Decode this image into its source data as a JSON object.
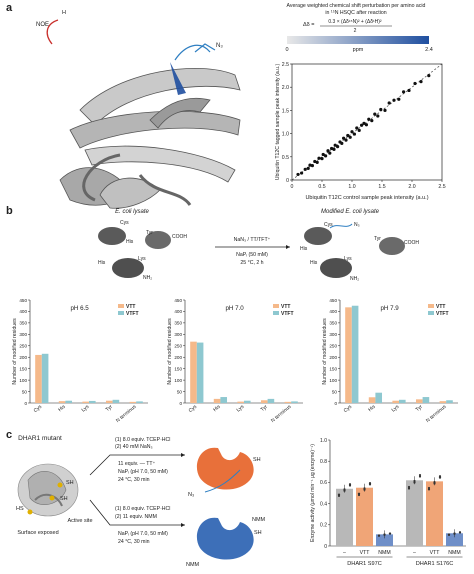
{
  "panels": {
    "a": "a",
    "b": "b",
    "c": "c"
  },
  "panel_a": {
    "noe_label": "NOE",
    "atom_h": "H",
    "atom_n3": "N₃",
    "legend": {
      "title_line1": "Average weighted chemical shift perturbation per amino acid",
      "title_line2": "in ¹⁵N HSQC after reaction",
      "formula_lhs": "Δδ =",
      "formula_num": "0.3 × (Δδ¹⁵N)² + (Δδ¹H)²",
      "formula_den": "2",
      "colorbar_min": "0",
      "colorbar_max": "2.4",
      "colorbar_unit": "ppm",
      "colorbar_from": "#e8e8e8",
      "colorbar_to": "#1f4fa0"
    }
  },
  "panel_b": {
    "lysate_left": "E. coli lysate",
    "lysate_right": "Modified E. coli lysate",
    "residues": {
      "cys": "Cys",
      "his": "His",
      "lys": "Lys",
      "tyr": "Tyr",
      "nh2": "NH₂",
      "cooh": "COOH",
      "n3": "N₃"
    },
    "reagent_line": "NaN₃ / TT/TFT⁺",
    "cond_line1": "NaPᵢ (50 mM)",
    "cond_line2": "25 °C, 2 h"
  },
  "panel_c": {
    "title": "DHAR1 mutant",
    "surface_label": "Surface exposed",
    "active_label": "Active site",
    "hs_label": "HS",
    "sh1_label": "SH",
    "sh2_label": "SH",
    "top_steps": [
      "(1) 8.0 equiv. TCEP·HCl",
      "(2) 40 mM NaN₃",
      "11 equiv. — TT⁺",
      "NaPᵢ (pH 7.0, 50 mM)",
      "24 °C, 30 min"
    ],
    "bottom_steps": [
      "(1) 8.0 equiv. TCEP·HCl",
      "(2) 11 equiv. NMM",
      "NaPᵢ (pH 7.0, 50 mM)",
      "24 °C, 30 min"
    ],
    "orange_sh": "SH",
    "blue_sh": "SH",
    "blue_nmm1": "NMM",
    "blue_nmm2": "NMM",
    "orange_n3": "N₃",
    "protein_orange": "#e8703a",
    "protein_blue": "#3d6fb8"
  },
  "chart_data": [
    {
      "type": "scatter",
      "xlabel": "Ubiquitin T12C control sample peak intensity (a.u.)",
      "ylabel": "Ubiquitin T12C tagged sample peak intensity (a.u.)",
      "xlim": [
        0,
        2.5
      ],
      "ylim": [
        0,
        2.5
      ],
      "xticks": [
        "0",
        "0.5",
        "1.0",
        "1.5",
        "2.0",
        "2.5"
      ],
      "yticks": [
        "0",
        "0.5",
        "1.0",
        "1.5",
        "2.0",
        "2.5"
      ],
      "grid": false,
      "points": [
        [
          0.1,
          0.12
        ],
        [
          0.16,
          0.15
        ],
        [
          0.22,
          0.23
        ],
        [
          0.27,
          0.25
        ],
        [
          0.3,
          0.32
        ],
        [
          0.34,
          0.31
        ],
        [
          0.38,
          0.4
        ],
        [
          0.42,
          0.38
        ],
        [
          0.45,
          0.47
        ],
        [
          0.5,
          0.46
        ],
        [
          0.52,
          0.55
        ],
        [
          0.56,
          0.52
        ],
        [
          0.6,
          0.63
        ],
        [
          0.63,
          0.58
        ],
        [
          0.66,
          0.68
        ],
        [
          0.7,
          0.66
        ],
        [
          0.72,
          0.75
        ],
        [
          0.76,
          0.72
        ],
        [
          0.8,
          0.82
        ],
        [
          0.83,
          0.79
        ],
        [
          0.86,
          0.9
        ],
        [
          0.9,
          0.86
        ],
        [
          0.93,
          0.96
        ],
        [
          0.97,
          0.92
        ],
        [
          1.0,
          1.04
        ],
        [
          1.04,
          0.99
        ],
        [
          1.08,
          1.12
        ],
        [
          1.12,
          1.07
        ],
        [
          1.16,
          1.18
        ],
        [
          1.2,
          1.22
        ],
        [
          1.24,
          1.19
        ],
        [
          1.28,
          1.31
        ],
        [
          1.33,
          1.28
        ],
        [
          1.38,
          1.42
        ],
        [
          1.43,
          1.38
        ],
        [
          1.48,
          1.52
        ],
        [
          1.55,
          1.5
        ],
        [
          1.62,
          1.66
        ],
        [
          1.7,
          1.72
        ],
        [
          1.78,
          1.74
        ],
        [
          1.86,
          1.9
        ],
        [
          1.95,
          1.93
        ],
        [
          2.05,
          2.08
        ],
        [
          2.15,
          2.12
        ],
        [
          2.28,
          2.25
        ]
      ]
    },
    {
      "type": "bar",
      "title": "pH 6.5",
      "categories": [
        "Cys",
        "His",
        "Lys",
        "Tyr",
        "N terminus"
      ],
      "ylabel": "Number of modified residues",
      "ylim": [
        0,
        450
      ],
      "yticks": [
        "0",
        "50",
        "100",
        "150",
        "200",
        "250",
        "300",
        "350",
        "400",
        "450"
      ],
      "series": [
        {
          "name": "VTT",
          "color": "#f5b98a",
          "values": [
            210,
            8,
            6,
            10,
            5
          ]
        },
        {
          "name": "VTFT",
          "color": "#8ec8d0",
          "values": [
            215,
            10,
            9,
            14,
            7
          ]
        }
      ]
    },
    {
      "type": "bar",
      "title": "pH 7.0",
      "categories": [
        "Cys",
        "His",
        "Lys",
        "Tyr",
        "N terminus"
      ],
      "ylabel": "Number of modified residues",
      "ylim": [
        0,
        450
      ],
      "yticks": [
        "0",
        "50",
        "100",
        "150",
        "200",
        "250",
        "300",
        "350",
        "400",
        "450"
      ],
      "series": [
        {
          "name": "VTT",
          "color": "#f5b98a",
          "values": [
            268,
            18,
            6,
            12,
            5
          ]
        },
        {
          "name": "VTFT",
          "color": "#8ec8d0",
          "values": [
            264,
            26,
            10,
            18,
            7
          ]
        }
      ]
    },
    {
      "type": "bar",
      "title": "pH 7.9",
      "categories": [
        "Cys",
        "His",
        "Lys",
        "Tyr",
        "N terminus"
      ],
      "ylabel": "Number of modified residues",
      "ylim": [
        0,
        450
      ],
      "yticks": [
        "0",
        "50",
        "100",
        "150",
        "200",
        "250",
        "300",
        "350",
        "400",
        "450"
      ],
      "series": [
        {
          "name": "VTT",
          "color": "#f5b98a",
          "values": [
            418,
            25,
            10,
            16,
            8
          ]
        },
        {
          "name": "VTFT",
          "color": "#8ec8d0",
          "values": [
            425,
            45,
            14,
            26,
            12
          ]
        }
      ]
    },
    {
      "type": "bar",
      "categories": [
        "–",
        "VTT",
        "NMM",
        "–",
        "VTT",
        "NMM"
      ],
      "groups": [
        "DHAR1 S97C",
        "DHAR1 S176C"
      ],
      "ylabel": "Enzyme activity (μmol min⁻¹ μg (enzyme)⁻¹)",
      "ylim": [
        0,
        1.0
      ],
      "yticks": [
        "0",
        "0.2",
        "0.4",
        "0.6",
        "0.8",
        "1.0"
      ],
      "colors": [
        "#b8b8b8",
        "#f0a577",
        "#6f8fc8",
        "#b8b8b8",
        "#f0a577",
        "#6f8fc8"
      ],
      "values": [
        0.54,
        0.55,
        0.11,
        0.62,
        0.61,
        0.12
      ]
    }
  ]
}
